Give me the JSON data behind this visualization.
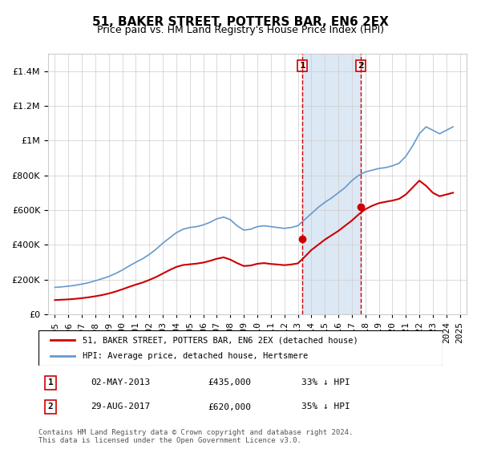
{
  "title": "51, BAKER STREET, POTTERS BAR, EN6 2EX",
  "subtitle": "Price paid vs. HM Land Registry's House Price Index (HPI)",
  "footer": "Contains HM Land Registry data © Crown copyright and database right 2024.\nThis data is licensed under the Open Government Licence v3.0.",
  "legend_line1": "51, BAKER STREET, POTTERS BAR, EN6 2EX (detached house)",
  "legend_line2": "HPI: Average price, detached house, Hertsmere",
  "sale1_label": "1",
  "sale1_date": "02-MAY-2013",
  "sale1_price": "£435,000",
  "sale1_hpi": "33% ↓ HPI",
  "sale1_year": 2013.33,
  "sale1_value": 435000,
  "sale2_label": "2",
  "sale2_date": "29-AUG-2017",
  "sale2_price": "£620,000",
  "sale2_hpi": "35% ↓ HPI",
  "sale2_year": 2017.66,
  "sale2_value": 620000,
  "ylim": [
    0,
    1500000
  ],
  "xlim": [
    1994.5,
    2025.5
  ],
  "red_color": "#cc0000",
  "blue_color": "#6699cc",
  "shaded_color": "#dde8f5",
  "grid_color": "#cccccc",
  "title_fontsize": 11,
  "subtitle_fontsize": 9,
  "tick_fontsize": 8,
  "hpi_data_x": [
    1995,
    1995.5,
    1996,
    1996.5,
    1997,
    1997.5,
    1998,
    1998.5,
    1999,
    1999.5,
    2000,
    2000.5,
    2001,
    2001.5,
    2002,
    2002.5,
    2003,
    2003.5,
    2004,
    2004.5,
    2005,
    2005.5,
    2006,
    2006.5,
    2007,
    2007.5,
    2008,
    2008.5,
    2009,
    2009.5,
    2010,
    2010.5,
    2011,
    2011.5,
    2012,
    2012.5,
    2013,
    2013.5,
    2014,
    2014.5,
    2015,
    2015.5,
    2016,
    2016.5,
    2017,
    2017.5,
    2018,
    2018.5,
    2019,
    2019.5,
    2020,
    2020.5,
    2021,
    2021.5,
    2022,
    2022.5,
    2023,
    2023.5,
    2024,
    2024.5
  ],
  "hpi_data_y": [
    155000,
    158000,
    162000,
    167000,
    174000,
    182000,
    193000,
    205000,
    218000,
    235000,
    255000,
    278000,
    300000,
    320000,
    345000,
    375000,
    410000,
    440000,
    470000,
    490000,
    500000,
    505000,
    515000,
    530000,
    550000,
    560000,
    545000,
    510000,
    485000,
    490000,
    505000,
    510000,
    505000,
    500000,
    495000,
    500000,
    510000,
    545000,
    580000,
    615000,
    645000,
    670000,
    700000,
    730000,
    770000,
    800000,
    820000,
    830000,
    840000,
    845000,
    855000,
    870000,
    910000,
    970000,
    1040000,
    1080000,
    1060000,
    1040000,
    1060000,
    1080000
  ],
  "red_data_x": [
    1995,
    1995.5,
    1996,
    1996.5,
    1997,
    1997.5,
    1998,
    1998.5,
    1999,
    1999.5,
    2000,
    2000.5,
    2001,
    2001.5,
    2002,
    2002.5,
    2003,
    2003.5,
    2004,
    2004.5,
    2005,
    2005.5,
    2006,
    2006.5,
    2007,
    2007.5,
    2008,
    2008.5,
    2009,
    2009.5,
    2010,
    2010.5,
    2011,
    2011.5,
    2012,
    2012.5,
    2013,
    2013.5,
    2014,
    2014.5,
    2015,
    2015.5,
    2016,
    2016.5,
    2017,
    2017.5,
    2018,
    2018.5,
    2019,
    2019.5,
    2020,
    2020.5,
    2021,
    2021.5,
    2022,
    2022.5,
    2023,
    2023.5,
    2024,
    2024.5
  ],
  "red_data_y": [
    82000,
    84000,
    86000,
    89000,
    93000,
    98000,
    104000,
    111000,
    120000,
    131000,
    144000,
    158000,
    171000,
    183000,
    198000,
    215000,
    235000,
    255000,
    273000,
    284000,
    288000,
    292000,
    298000,
    308000,
    320000,
    328000,
    315000,
    295000,
    278000,
    281000,
    291000,
    295000,
    290000,
    287000,
    283000,
    287000,
    293000,
    330000,
    370000,
    400000,
    430000,
    455000,
    480000,
    510000,
    540000,
    575000,
    605000,
    625000,
    640000,
    648000,
    655000,
    665000,
    690000,
    730000,
    770000,
    740000,
    700000,
    680000,
    690000,
    700000
  ]
}
